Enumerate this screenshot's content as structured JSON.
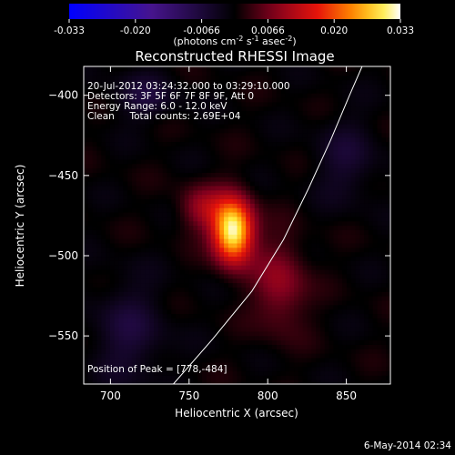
{
  "chart_data": {
    "type": "heatmap",
    "title": "Reconstructed RHESSI Image",
    "xlabel": "Heliocentric X (arcsec)",
    "ylabel": "Heliocentric Y (arcsec)",
    "xlim": [
      683,
      878
    ],
    "ylim": [
      -580,
      -382
    ],
    "x_ticks": [
      700,
      750,
      800,
      850
    ],
    "y_ticks": [
      -400,
      -450,
      -500,
      -550
    ],
    "colorbar": {
      "ticks": [
        "-0.033",
        "-0.020",
        "-0.0066",
        "0.0066",
        "0.020",
        "0.033"
      ],
      "range": [
        -0.033,
        0.033
      ],
      "unit_parts": [
        "(photons cm",
        "-2",
        " s",
        "-1",
        " asec",
        "-2",
        ")"
      ]
    },
    "info_lines": [
      "20-Jul-2012 03:24:32.000 to 03:29:10.000",
      "Detectors: 3F 5F 6F 7F 8F 9F, Att 0",
      "Energy Range: 6.0 - 12.0 keV",
      "Clean     Total counts: 2.69E+04"
    ],
    "peak_label": "Position of Peak = [778,-484]",
    "sources": [
      {
        "x": 778,
        "y": -484,
        "sx": 9,
        "sy": 14,
        "amp": 0.033
      },
      {
        "x": 758,
        "y": -470,
        "sx": 10,
        "sy": 10,
        "amp": 0.009
      },
      {
        "x": 808,
        "y": -518,
        "sx": 12,
        "sy": 20,
        "amp": 0.009
      },
      {
        "x": 722,
        "y": -400,
        "sx": 14,
        "sy": 10,
        "amp": -0.006
      },
      {
        "x": 712,
        "y": -548,
        "sx": 16,
        "sy": 22,
        "amp": -0.006
      },
      {
        "x": 850,
        "y": -440,
        "sx": 14,
        "sy": 18,
        "amp": -0.005
      }
    ],
    "limb_curve": [
      [
        740,
        -580
      ],
      [
        765,
        -552
      ],
      [
        790,
        -522
      ],
      [
        810,
        -490
      ],
      [
        826,
        -458
      ],
      [
        840,
        -428
      ],
      [
        852,
        -400
      ],
      [
        860,
        -382
      ]
    ],
    "footer": "6-May-2014 02:34"
  }
}
